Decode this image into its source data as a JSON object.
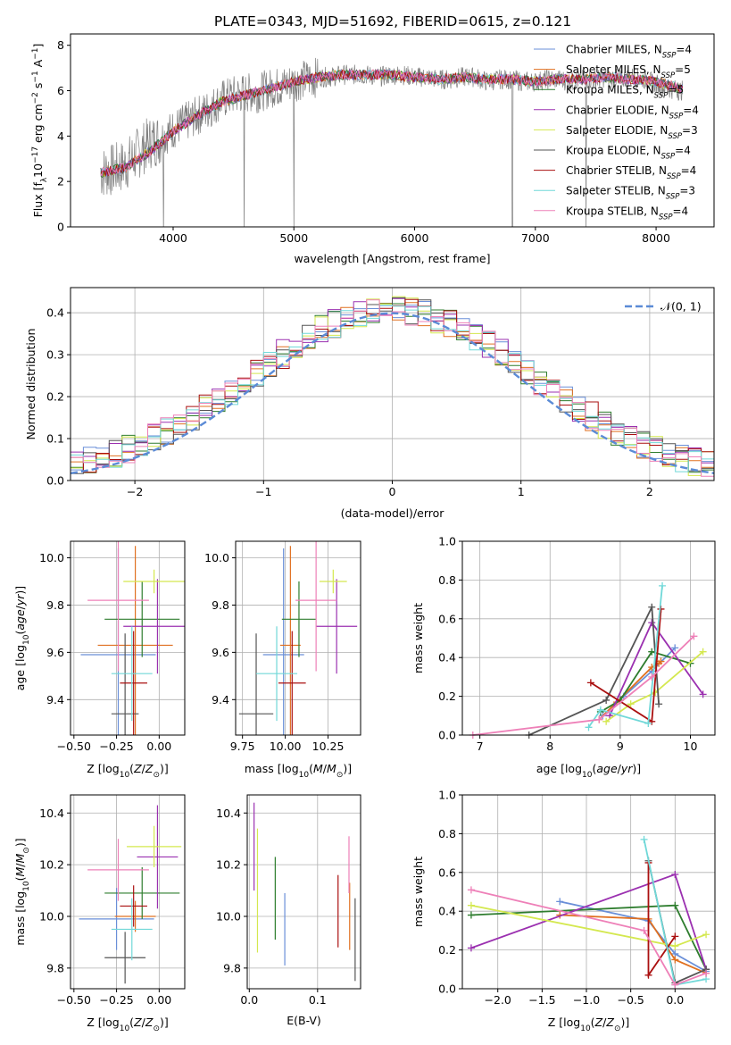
{
  "suptitle": "PLATE=0343, MJD=51692, FIBERID=0615, z=0.121",
  "colors": [
    "#6a8fd8",
    "#e07020",
    "#2e7d2e",
    "#9b30b0",
    "#d4e84f",
    "#555555",
    "#aa1010",
    "#70d8d8",
    "#ee80b8"
  ],
  "legend": [
    {
      "pre": "Chabrier MILES, N",
      "sub": "SSP",
      "post": "=4"
    },
    {
      "pre": "Salpeter MILES, N",
      "sub": "SSP",
      "post": "=5"
    },
    {
      "pre": "Kroupa MILES, N",
      "sub": "SSP",
      "post": "=5"
    },
    {
      "pre": "Chabrier ELODIE, N",
      "sub": "SSP",
      "post": "=4"
    },
    {
      "pre": "Salpeter ELODIE, N",
      "sub": "SSP",
      "post": "=3"
    },
    {
      "pre": "Kroupa ELODIE, N",
      "sub": "SSP",
      "post": "=4"
    },
    {
      "pre": "Chabrier STELIB, N",
      "sub": "SSP",
      "post": "=4"
    },
    {
      "pre": "Salpeter STELIB, N",
      "sub": "SSP",
      "post": "=3"
    },
    {
      "pre": "Kroupa STELIB, N",
      "sub": "SSP",
      "post": "=4"
    }
  ],
  "chart_data": [
    {
      "type": "line",
      "name": "spectrum",
      "xlabel": "wavelength [Angstrom, rest frame]",
      "ylabel": "Flux [f_λ 10^-17 erg cm^-2 s^-1 A^-1]",
      "xlim": [
        3150,
        8480
      ],
      "ylim": [
        0,
        8.5
      ],
      "xticks": [
        4000,
        5000,
        6000,
        7000,
        8000
      ],
      "yticks": [
        0,
        2,
        4,
        6,
        8
      ],
      "data_x": [
        3400,
        3500,
        3600,
        3700,
        3800,
        3900,
        4000,
        4100,
        4200,
        4300,
        4400,
        4500,
        4600,
        4700,
        4800,
        4900,
        5000,
        5100,
        5200,
        5300,
        5400,
        5500,
        5600,
        5700,
        5800,
        5900,
        6000,
        6100,
        6200,
        6300,
        6400,
        6500,
        6600,
        6700,
        6800,
        6900,
        7000,
        7100,
        7200,
        7300,
        7400,
        7500,
        7600,
        7700,
        7800,
        7900,
        8000,
        8100,
        8200
      ],
      "data_y": [
        2.4,
        2.5,
        2.7,
        3.2,
        3.7,
        3.9,
        4.3,
        4.6,
        4.9,
        5.2,
        5.6,
        5.8,
        5.9,
        5.9,
        6.1,
        6.2,
        6.4,
        6.5,
        6.6,
        6.6,
        6.7,
        6.7,
        6.7,
        6.6,
        6.7,
        6.7,
        6.6,
        6.6,
        6.5,
        6.5,
        6.6,
        6.6,
        6.4,
        6.5,
        6.5,
        6.4,
        6.4,
        6.5,
        6.5,
        6.4,
        6.5,
        6.5,
        6.6,
        6.5,
        6.6,
        6.5,
        6.3,
        6.1,
        6.0
      ],
      "model_x": [
        3400,
        3600,
        3800,
        4000,
        4200,
        4400,
        4600,
        4800,
        5000,
        5200,
        5400,
        5600,
        5800,
        6000,
        6200,
        6400,
        6600,
        6800,
        7000,
        7200,
        7400,
        7600,
        7800,
        8000,
        8200
      ],
      "model_y": [
        2.4,
        2.6,
        3.3,
        4.2,
        4.9,
        5.5,
        5.8,
        6.1,
        6.4,
        6.6,
        6.7,
        6.7,
        6.7,
        6.6,
        6.5,
        6.6,
        6.5,
        6.5,
        6.4,
        6.5,
        6.5,
        6.6,
        6.5,
        6.4,
        6.1
      ]
    },
    {
      "type": "bar",
      "name": "residual histogram",
      "xlabel": "(data-model)/error",
      "ylabel": "Normed distribution",
      "xlim": [
        -2.5,
        2.5
      ],
      "ylim": [
        0,
        0.46
      ],
      "xticks": [
        -2,
        -1,
        0,
        1,
        2
      ],
      "yticks": [
        0.0,
        0.1,
        0.2,
        0.3,
        0.4
      ],
      "xtick_labels": [
        "−2",
        "−1",
        "0",
        "1",
        "2"
      ],
      "legend_label": "𝒩(0, 1)",
      "bin_width": 0.1
    },
    {
      "type": "scatter",
      "name": "age vs Z",
      "xlabel": "Z [log10(Z/Z⊙)]",
      "ylabel": "age [log10(age/yr)]",
      "xlim": [
        -0.52,
        0.15
      ],
      "ylim": [
        9.25,
        10.07
      ],
      "xticks": [
        -0.5,
        -0.25,
        0.0
      ],
      "yticks": [
        9.4,
        9.6,
        9.8,
        10.0
      ],
      "points": [
        {
          "x": -0.24,
          "y": 9.59,
          "xerr": 0.22,
          "yerr": 0.45
        },
        {
          "x": -0.14,
          "y": 9.63,
          "xerr": 0.22,
          "yerr": 0.42
        },
        {
          "x": -0.1,
          "y": 9.74,
          "xerr": 0.22,
          "yerr": 0.16
        },
        {
          "x": -0.01,
          "y": 9.71,
          "xerr": 0.2,
          "yerr": 0.2
        },
        {
          "x": -0.03,
          "y": 9.9,
          "xerr": 0.18,
          "yerr": 0.05
        },
        {
          "x": -0.2,
          "y": 9.34,
          "xerr": 0.08,
          "yerr": 0.34
        },
        {
          "x": -0.15,
          "y": 9.47,
          "xerr": 0.08,
          "yerr": 0.22
        },
        {
          "x": -0.16,
          "y": 9.51,
          "xerr": 0.12,
          "yerr": 0.2
        },
        {
          "x": -0.24,
          "y": 9.82,
          "xerr": 0.18,
          "yerr": 0.3
        }
      ]
    },
    {
      "type": "scatter",
      "name": "age vs mass",
      "xlabel": "mass [log10(M/M⊙)]",
      "ylabel": "",
      "xlim": [
        9.71,
        10.44
      ],
      "ylim": [
        9.25,
        10.07
      ],
      "xticks": [
        9.75,
        10.0,
        10.25
      ],
      "yticks": [
        9.4,
        9.6,
        9.8,
        10.0
      ],
      "points": [
        {
          "x": 9.99,
          "y": 9.59,
          "xerr": 0.12,
          "yerr": 0.45
        },
        {
          "x": 10.03,
          "y": 9.63,
          "xerr": 0.06,
          "yerr": 0.42
        },
        {
          "x": 10.08,
          "y": 9.74,
          "xerr": 0.1,
          "yerr": 0.16
        },
        {
          "x": 10.3,
          "y": 9.71,
          "xerr": 0.12,
          "yerr": 0.2
        },
        {
          "x": 10.28,
          "y": 9.9,
          "xerr": 0.08,
          "yerr": 0.05
        },
        {
          "x": 9.83,
          "y": 9.34,
          "xerr": 0.1,
          "yerr": 0.34
        },
        {
          "x": 10.04,
          "y": 9.47,
          "xerr": 0.08,
          "yerr": 0.22
        },
        {
          "x": 9.95,
          "y": 9.51,
          "xerr": 0.12,
          "yerr": 0.2
        },
        {
          "x": 10.18,
          "y": 9.82,
          "xerr": 0.12,
          "yerr": 0.3
        }
      ]
    },
    {
      "type": "line",
      "name": "mass weight vs age",
      "xlabel": "age [log10(age/yr)]",
      "ylabel": "mass weight",
      "xlim": [
        6.75,
        10.35
      ],
      "ylim": [
        0,
        1
      ],
      "xticks": [
        7,
        8,
        9,
        10
      ],
      "yticks": [
        0.0,
        0.2,
        0.4,
        0.6,
        0.8,
        1.0
      ],
      "series": [
        {
          "x": [
            8.75,
            9.05,
            9.45,
            9.78
          ],
          "y": [
            0.1,
            0.2,
            0.33,
            0.45
          ]
        },
        {
          "x": [
            8.7,
            8.95,
            9.45,
            9.55,
            9.58
          ],
          "y": [
            0.08,
            0.17,
            0.35,
            0.37,
            0.38
          ]
        },
        {
          "x": [
            8.72,
            9.0,
            9.45,
            10.0
          ],
          "y": [
            0.12,
            0.18,
            0.43,
            0.37
          ]
        },
        {
          "x": [
            8.85,
            9.45,
            10.18
          ],
          "y": [
            0.1,
            0.58,
            0.21
          ]
        },
        {
          "x": [
            8.8,
            9.15,
            9.5,
            10.18
          ],
          "y": [
            0.07,
            0.16,
            0.22,
            0.43
          ]
        },
        {
          "x": [
            7.7,
            8.8,
            9.45,
            9.55
          ],
          "y": [
            0.0,
            0.18,
            0.66,
            0.16
          ]
        },
        {
          "x": [
            8.58,
            9.45,
            9.58
          ],
          "y": [
            0.27,
            0.07,
            0.65
          ]
        },
        {
          "x": [
            8.55,
            8.72,
            9.4,
            9.6
          ],
          "y": [
            0.04,
            0.13,
            0.06,
            0.77
          ]
        },
        {
          "x": [
            6.9,
            8.7,
            9.45,
            10.05
          ],
          "y": [
            0.0,
            0.08,
            0.3,
            0.51
          ]
        }
      ]
    },
    {
      "type": "scatter",
      "name": "mass vs Z",
      "xlabel": "Z [log10(Z/Z⊙)]",
      "ylabel": "mass [log10(M/M⊙)]",
      "xlim": [
        -0.52,
        0.15
      ],
      "ylim": [
        9.72,
        10.47
      ],
      "xticks": [
        -0.5,
        -0.25,
        0.0
      ],
      "yticks": [
        9.8,
        10.0,
        10.2,
        10.4
      ],
      "points": [
        {
          "x": -0.25,
          "y": 9.99,
          "xerr": 0.22,
          "yerr": 0.12
        },
        {
          "x": -0.14,
          "y": 10.0,
          "xerr": 0.12,
          "yerr": 0.06
        },
        {
          "x": -0.1,
          "y": 10.09,
          "xerr": 0.22,
          "yerr": 0.1
        },
        {
          "x": -0.01,
          "y": 10.23,
          "xerr": 0.12,
          "yerr": 0.2
        },
        {
          "x": -0.03,
          "y": 10.27,
          "xerr": 0.16,
          "yerr": 0.08
        },
        {
          "x": -0.2,
          "y": 9.84,
          "xerr": 0.12,
          "yerr": 0.1
        },
        {
          "x": -0.15,
          "y": 10.04,
          "xerr": 0.08,
          "yerr": 0.08
        },
        {
          "x": -0.16,
          "y": 9.95,
          "xerr": 0.12,
          "yerr": 0.12
        },
        {
          "x": -0.24,
          "y": 10.18,
          "xerr": 0.18,
          "yerr": 0.12
        }
      ]
    },
    {
      "type": "scatter",
      "name": "mass vs E(B-V)",
      "xlabel": "E(B-V)",
      "ylabel": "",
      "xlim": [
        -0.003,
        0.163
      ],
      "ylim": [
        9.72,
        10.47
      ],
      "xticks": [
        0.0,
        0.1
      ],
      "yticks": [
        9.8,
        10.0,
        10.2,
        10.4
      ],
      "points": [
        {
          "x": 0.052,
          "y": 9.95,
          "yerr": 0.14
        },
        {
          "x": 0.147,
          "y": 10.0,
          "yerr": 0.13
        },
        {
          "x": 0.038,
          "y": 10.07,
          "yerr": 0.16
        },
        {
          "x": 0.007,
          "y": 10.27,
          "yerr": 0.17
        },
        {
          "x": 0.012,
          "y": 10.1,
          "yerr": 0.24
        },
        {
          "x": 0.155,
          "y": 9.91,
          "yerr": 0.16
        },
        {
          "x": 0.13,
          "y": 10.02,
          "yerr": 0.14
        },
        {
          "x": 0.05,
          "y": 10.0,
          "yerr": 0.0
        },
        {
          "x": 0.146,
          "y": 10.2,
          "yerr": 0.11
        }
      ]
    },
    {
      "type": "line",
      "name": "mass weight vs Z",
      "xlabel": "Z [log10(Z/Z⊙)]",
      "ylabel": "mass weight",
      "xlim": [
        -2.4,
        0.45
      ],
      "ylim": [
        0,
        1
      ],
      "xticks": [
        -2.0,
        -1.5,
        -1.0,
        -0.5,
        0.0
      ],
      "yticks": [
        0.0,
        0.2,
        0.4,
        0.6,
        0.8,
        1.0
      ],
      "series": [
        {
          "x": [
            -1.3,
            -0.3,
            0.0,
            0.35
          ],
          "y": [
            0.45,
            0.35,
            0.18,
            0.09
          ]
        },
        {
          "x": [
            -1.3,
            -0.3,
            0.0,
            0.35
          ],
          "y": [
            0.38,
            0.36,
            0.15,
            0.08
          ]
        },
        {
          "x": [
            -2.3,
            0.0,
            0.35
          ],
          "y": [
            0.38,
            0.43,
            0.1
          ]
        },
        {
          "x": [
            -2.3,
            0.0,
            0.35
          ],
          "y": [
            0.21,
            0.59,
            0.1
          ]
        },
        {
          "x": [
            -2.3,
            0.0,
            0.35
          ],
          "y": [
            0.43,
            0.22,
            0.28
          ]
        },
        {
          "x": [
            -0.3,
            0.0,
            0.35
          ],
          "y": [
            0.66,
            0.03,
            0.1
          ]
        },
        {
          "x": [
            -0.3,
            -0.3,
            0.0
          ],
          "y": [
            0.65,
            0.07,
            0.27
          ]
        },
        {
          "x": [
            -0.35,
            0.0,
            0.35
          ],
          "y": [
            0.77,
            0.02,
            0.05
          ]
        },
        {
          "x": [
            -2.3,
            -0.35,
            0.0,
            0.35
          ],
          "y": [
            0.51,
            0.3,
            0.02,
            0.08
          ]
        }
      ]
    }
  ]
}
